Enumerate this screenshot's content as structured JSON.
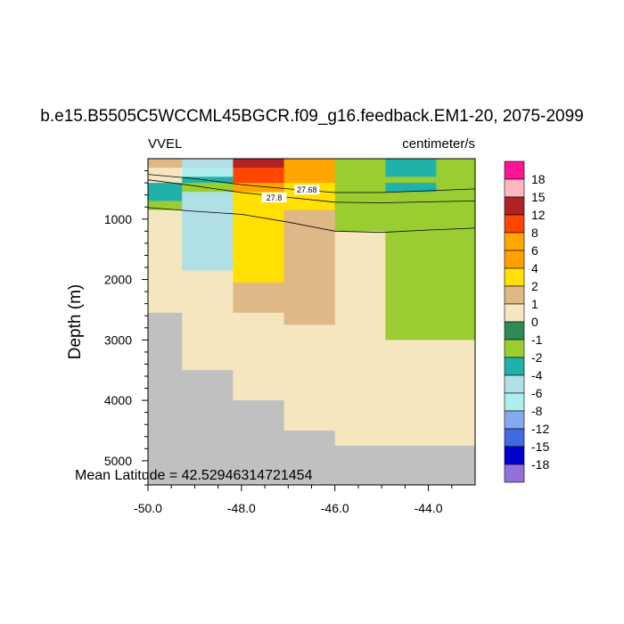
{
  "chart_data": {
    "type": "heatmap",
    "title": "b.e15.B5505C5WCCML45BGCR.f09_g16.feedback.EM1-20, 2075-2099",
    "left_label": "VVEL",
    "units": "centimeter/s",
    "ylabel": "Depth (m)",
    "xlabel": "",
    "note": "Mean Latitude = 42.52946314721454",
    "xlim": [
      -50.0,
      -43.0
    ],
    "ylim_depth": [
      0,
      5400
    ],
    "x_ticks": [
      -50.0,
      -48.0,
      -46.0,
      -44.0
    ],
    "x_tick_labels": [
      "-50.0",
      "-48.0",
      "-46.0",
      "-44.0"
    ],
    "y_ticks": [
      1000,
      2000,
      3000,
      4000,
      5000
    ],
    "y_tick_labels": [
      "1000",
      "2000",
      "3000",
      "4000",
      "5000"
    ],
    "x_edges": [
      -50.0,
      -49.27,
      -48.18,
      -47.09,
      -46.0,
      -44.92,
      -43.83,
      -43.0
    ],
    "z_edges": [
      0,
      150,
      300,
      400,
      550,
      700,
      850,
      950,
      1150,
      1200,
      1400,
      1850,
      2050,
      2550,
      2750,
      3000,
      3500,
      4000,
      4500,
      4750,
      5400
    ],
    "columns": [
      [
        2,
        1,
        0,
        -2,
        -2,
        -1,
        0,
        0,
        0,
        0,
        0,
        0,
        0,
        "land",
        "land",
        "land",
        "land",
        "land",
        "land",
        "land"
      ],
      [
        -6,
        -4,
        -2,
        -1,
        -6,
        -6,
        -6,
        -6,
        -6,
        -6,
        -6,
        0,
        0,
        0,
        0,
        0,
        "land",
        "land",
        "land",
        "land"
      ],
      [
        12,
        8,
        8,
        6,
        4,
        4,
        4,
        4,
        4,
        4,
        4,
        4,
        2,
        0,
        0,
        0,
        0,
        "land",
        "land",
        "land"
      ],
      [
        6,
        6,
        6,
        4,
        4,
        4,
        2,
        2,
        2,
        2,
        2,
        2,
        2,
        2,
        0,
        0,
        0,
        0,
        "land",
        "land"
      ],
      [
        -1,
        -1,
        -1,
        -1,
        -1,
        -1,
        -1,
        -1,
        -1,
        0,
        0,
        0,
        0,
        0,
        0,
        0,
        0,
        0,
        0,
        "land"
      ],
      [
        -2,
        -2,
        -1,
        -2,
        -1,
        -1,
        -1,
        -1,
        -1,
        -1,
        -1,
        -1,
        -1,
        -1,
        -1,
        0,
        0,
        0,
        0,
        "land"
      ],
      [
        -1,
        -1,
        -1,
        -1,
        -1,
        -1,
        -1,
        -1,
        -1,
        -1,
        -1,
        -1,
        -1,
        -1,
        -1,
        0,
        0,
        0,
        0,
        "land"
      ]
    ],
    "contours": [
      {
        "label": "27.68",
        "label_x": -46.6,
        "label_z": 520,
        "points": [
          [
            -50.0,
            260
          ],
          [
            -49.0,
            330
          ],
          [
            -48.0,
            430
          ],
          [
            -47.0,
            500
          ],
          [
            -46.0,
            560
          ],
          [
            -45.0,
            560
          ],
          [
            -43.0,
            500
          ]
        ]
      },
      {
        "label": "27.8",
        "label_x": -47.3,
        "label_z": 650,
        "points": [
          [
            -50.0,
            350
          ],
          [
            -49.0,
            450
          ],
          [
            -48.0,
            560
          ],
          [
            -47.0,
            640
          ],
          [
            -46.0,
            720
          ],
          [
            -45.0,
            730
          ],
          [
            -43.0,
            700
          ]
        ]
      },
      {
        "label": "",
        "label_x": null,
        "label_z": null,
        "points": [
          [
            -50.0,
            810
          ],
          [
            -49.0,
            870
          ],
          [
            -48.0,
            920
          ],
          [
            -47.0,
            1050
          ],
          [
            -46.0,
            1200
          ],
          [
            -45.0,
            1220
          ],
          [
            -44.0,
            1180
          ],
          [
            -43.0,
            1150
          ]
        ]
      }
    ],
    "colorbar": {
      "labels": [
        "18",
        "15",
        "12",
        "8",
        "6",
        "4",
        "2",
        "1",
        "0",
        "-1",
        "-2",
        "-4",
        "-6",
        "-8",
        "-12",
        "-15",
        "-18"
      ],
      "colors": [
        "#ff1493",
        "#ffb6c1",
        "#b22222",
        "#ff4500",
        "#ffa500",
        "#ffa000",
        "#ffe000",
        "#deb887",
        "#f5e6c0",
        "#2e8b57",
        "#9acd32",
        "#20b2aa",
        "#b0e0e6",
        "#afeeee",
        "#87a8ee",
        "#4169e1",
        "#0000cd",
        "#9370db"
      ]
    },
    "level_colors": {
      "18": "#ff1493",
      "15": "#ffb6c1",
      "12": "#b22222",
      "8": "#ff4500",
      "6": "#ffa500",
      "4": "#ffe000",
      "2": "#deb887",
      "1": "#f5e6c0",
      "0": "#f5e6c0",
      "-1": "#9acd32",
      "-2": "#20b2aa",
      "-4": "#afeeee",
      "-6": "#b0e0e6",
      "-8": "#87a8ee",
      "-12": "#4169e1",
      "-15": "#0000cd",
      "-18": "#9370db",
      "land": "#c0c0c0"
    }
  }
}
